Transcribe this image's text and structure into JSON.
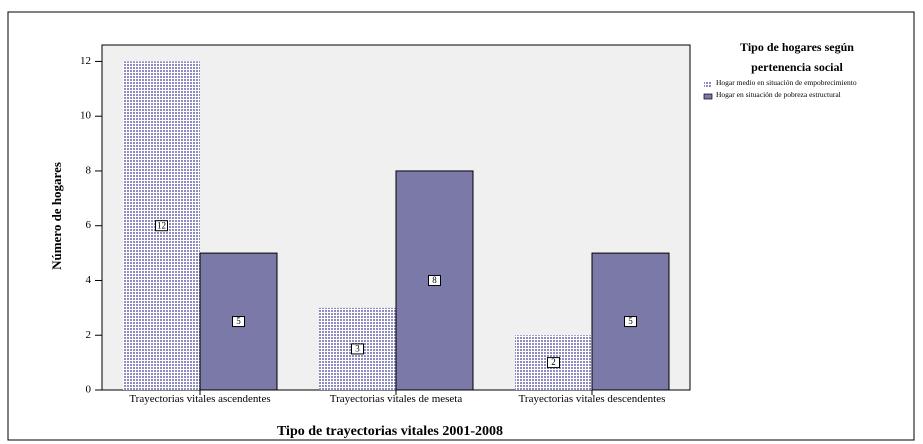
{
  "chart_data": {
    "type": "bar",
    "x_label": "Tipo de trayectorias vitales 2001-2008",
    "y_label": "Número de hogares",
    "legend_title": [
      "Tipo de hogares según",
      "pertenencia social"
    ],
    "categories": [
      "Trayectorias vitales ascendentes",
      "Trayectorias vitales de meseta",
      "Trayectorias vitales descendentes"
    ],
    "series": [
      {
        "name": "Hogar medio en situación de empobrecimiento",
        "color": "#8e8cc0",
        "pattern": "grid",
        "values": [
          12,
          3,
          2
        ]
      },
      {
        "name": "Hogar en situación de pobreza estructural",
        "color": "#7b79a8",
        "values": [
          5,
          8,
          5
        ]
      }
    ],
    "ylim": [
      0,
      12.6
    ],
    "yticks": [
      0,
      2,
      4,
      6,
      8,
      10,
      12
    ],
    "grid": false,
    "legend": "right"
  }
}
